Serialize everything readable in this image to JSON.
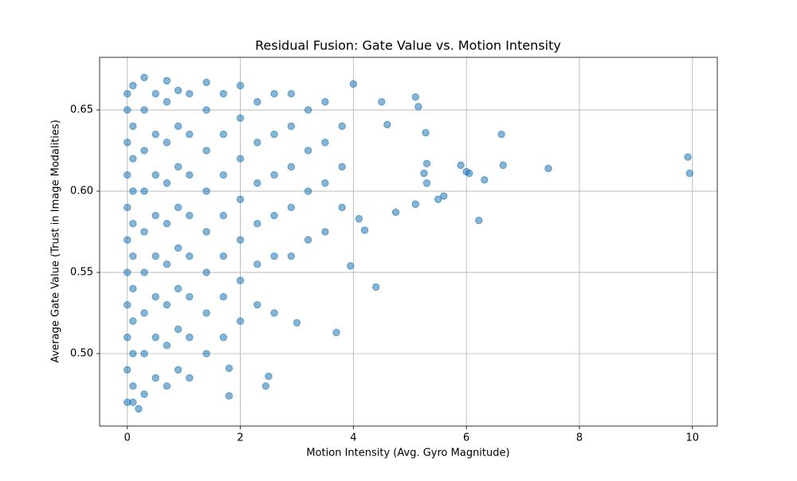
{
  "chart_data": {
    "type": "scatter",
    "title": "Residual Fusion: Gate Value vs. Motion Intensity",
    "x_label": "Motion Intensity (Avg. Gyro Magnitude)",
    "y_label": "Average Gate Value (Trust in Image Modalities)",
    "xlim": [
      -0.49,
      10.44
    ],
    "ylim": [
      0.4554,
      0.6824
    ],
    "xticks": [
      0,
      2,
      4,
      6,
      8,
      10
    ],
    "yticks": [
      {
        "value": 0.5,
        "label": "0.50"
      },
      0.55,
      {
        "value": 0.6,
        "label": "0.60"
      },
      0.65
    ],
    "grid": true,
    "series": [
      {
        "color": "#1f77b4",
        "x": [
          9.92,
          9.95,
          7.45,
          6.65,
          6.62,
          6.22,
          6.32,
          6.05,
          6.0,
          5.9,
          5.6,
          5.5,
          5.3,
          5.25,
          5.3,
          5.28,
          5.1,
          5.15,
          5.1,
          4.75,
          4.4,
          3.7,
          4.5,
          4.6,
          3.0,
          2.5,
          2.45,
          1.8,
          1.8,
          0.2,
          4.0,
          4.2,
          4.1,
          3.95,
          0,
          0,
          0,
          0,
          0,
          0,
          0,
          0,
          0,
          0,
          0,
          0.1,
          0.1,
          0.1,
          0.1,
          0.1,
          0.1,
          0.1,
          0.1,
          0.1,
          0.1,
          0.1,
          0.3,
          0.3,
          0.3,
          0.3,
          0.3,
          0.3,
          0.3,
          0.3,
          0.3,
          0.5,
          0.5,
          0.5,
          0.5,
          0.5,
          0.5,
          0.5,
          0.5,
          0.7,
          0.7,
          0.7,
          0.7,
          0.7,
          0.7,
          0.7,
          0.7,
          0.7,
          0.9,
          0.9,
          0.9,
          0.9,
          0.9,
          0.9,
          0.9,
          0.9,
          1.1,
          1.1,
          1.1,
          1.1,
          1.1,
          1.1,
          1.1,
          1.1,
          1.4,
          1.4,
          1.4,
          1.4,
          1.4,
          1.4,
          1.4,
          1.4,
          1.7,
          1.7,
          1.7,
          1.7,
          1.7,
          1.7,
          1.7,
          2.0,
          2.0,
          2.0,
          2.0,
          2.0,
          2.0,
          2.0,
          2.3,
          2.3,
          2.3,
          2.3,
          2.3,
          2.3,
          2.6,
          2.6,
          2.6,
          2.6,
          2.6,
          2.6,
          2.9,
          2.9,
          2.9,
          2.9,
          2.9,
          3.2,
          3.2,
          3.2,
          3.2,
          3.5,
          3.5,
          3.5,
          3.5,
          3.8,
          3.8,
          3.8
        ],
        "values": [
          0.621,
          0.611,
          0.614,
          0.616,
          0.635,
          0.582,
          0.607,
          0.611,
          0.612,
          0.616,
          0.597,
          0.595,
          0.605,
          0.611,
          0.617,
          0.636,
          0.592,
          0.652,
          0.658,
          0.587,
          0.541,
          0.513,
          0.655,
          0.641,
          0.519,
          0.486,
          0.48,
          0.474,
          0.491,
          0.466,
          0.666,
          0.576,
          0.583,
          0.554,
          0.47,
          0.49,
          0.51,
          0.53,
          0.55,
          0.57,
          0.59,
          0.61,
          0.63,
          0.65,
          0.66,
          0.48,
          0.5,
          0.52,
          0.54,
          0.56,
          0.58,
          0.6,
          0.62,
          0.64,
          0.665,
          0.47,
          0.475,
          0.5,
          0.525,
          0.55,
          0.575,
          0.6,
          0.625,
          0.65,
          0.67,
          0.485,
          0.51,
          0.535,
          0.56,
          0.585,
          0.61,
          0.635,
          0.66,
          0.48,
          0.505,
          0.53,
          0.555,
          0.58,
          0.605,
          0.63,
          0.655,
          0.668,
          0.49,
          0.515,
          0.54,
          0.565,
          0.59,
          0.615,
          0.64,
          0.662,
          0.485,
          0.51,
          0.535,
          0.56,
          0.585,
          0.61,
          0.635,
          0.66,
          0.5,
          0.525,
          0.55,
          0.575,
          0.6,
          0.625,
          0.65,
          0.667,
          0.51,
          0.535,
          0.56,
          0.585,
          0.61,
          0.635,
          0.66,
          0.52,
          0.545,
          0.57,
          0.595,
          0.62,
          0.645,
          0.665,
          0.53,
          0.555,
          0.58,
          0.605,
          0.63,
          0.655,
          0.525,
          0.56,
          0.585,
          0.61,
          0.635,
          0.66,
          0.56,
          0.59,
          0.615,
          0.64,
          0.66,
          0.57,
          0.6,
          0.625,
          0.65,
          0.575,
          0.605,
          0.63,
          0.655,
          0.59,
          0.615,
          0.64
        ]
      }
    ]
  }
}
